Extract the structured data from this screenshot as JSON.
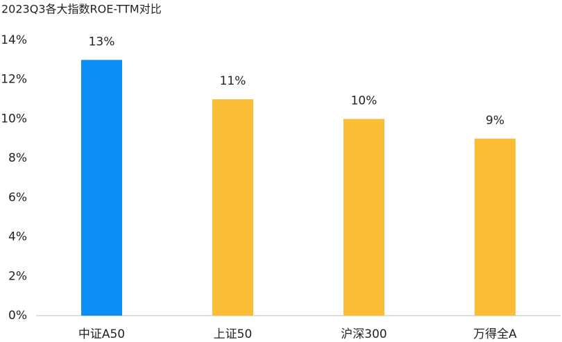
{
  "chart_data": {
    "type": "bar",
    "title": "2023Q3各大指数ROE-TTM对比",
    "categories": [
      "中证A50",
      "上证50",
      "沪深300",
      "万得全A"
    ],
    "values": [
      13,
      11,
      10,
      9
    ],
    "value_labels": [
      "13%",
      "11%",
      "10%",
      "9%"
    ],
    "colors": [
      "#0b8ff4",
      "#fbbd36",
      "#fbbd36",
      "#fbbd36"
    ],
    "ylim": [
      0,
      14
    ],
    "yticks": [
      {
        "value": 0,
        "label": "0%"
      },
      {
        "value": 2,
        "label": "2%"
      },
      {
        "value": 4,
        "label": "4%"
      },
      {
        "value": 6,
        "label": "6%"
      },
      {
        "value": 8,
        "label": "8%"
      },
      {
        "value": 10,
        "label": "10%"
      },
      {
        "value": 12,
        "label": "12%"
      },
      {
        "value": 14,
        "label": "14%"
      }
    ],
    "grid": false
  }
}
